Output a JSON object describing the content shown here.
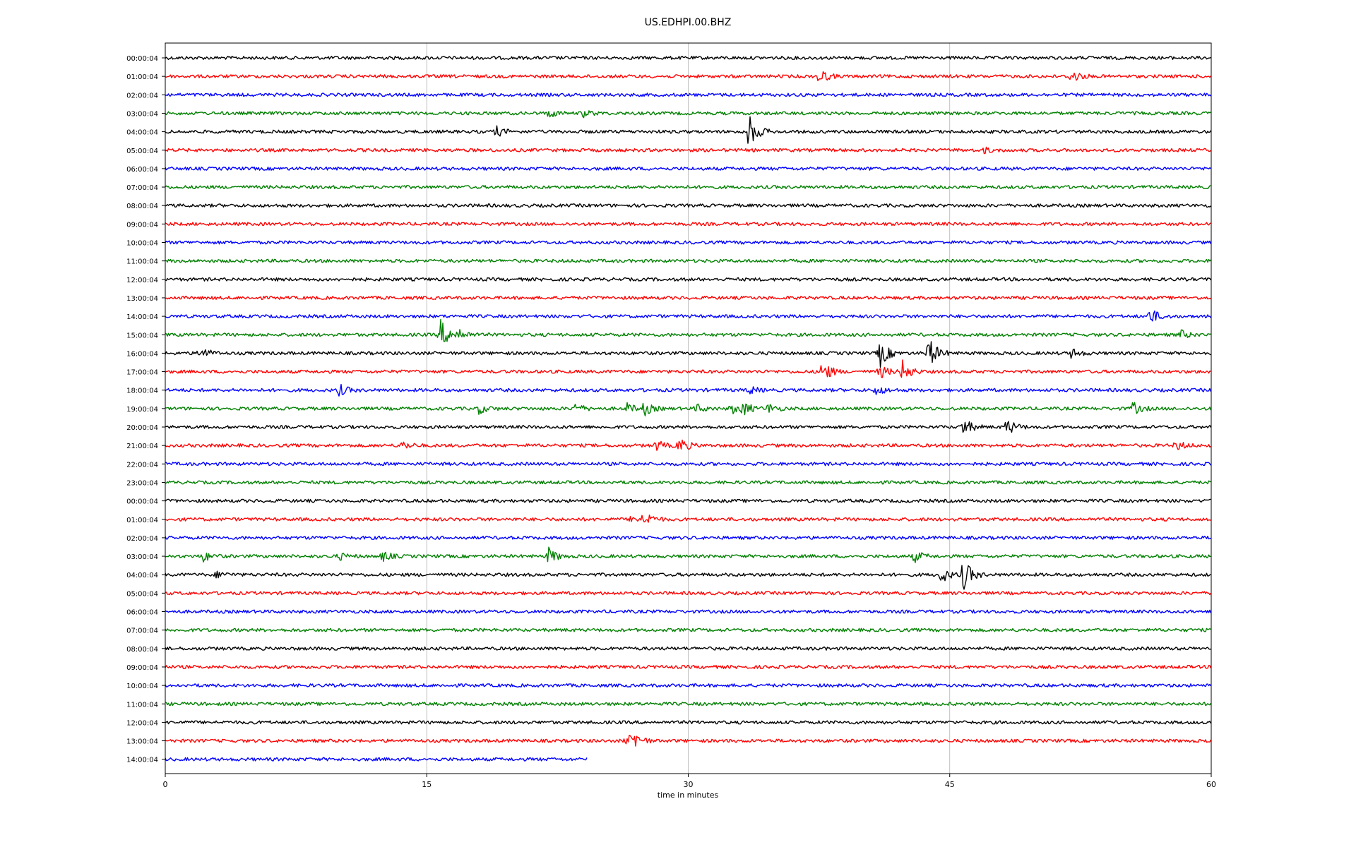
{
  "chart_data": {
    "type": "line",
    "title": "US.EDHPI.00.BHZ",
    "xlabel": "time in minutes",
    "ylabel": "",
    "xlim": [
      0,
      60
    ],
    "xticks": [
      0,
      15,
      30,
      45,
      60
    ],
    "grid": "vertical lines at x ticks",
    "colors": [
      "#000000",
      "#ff0000",
      "#0000ff",
      "#008000"
    ],
    "row_labels": [
      "00:00:04",
      "01:00:04",
      "02:00:04",
      "03:00:04",
      "04:00:04",
      "05:00:04",
      "06:00:04",
      "07:00:04",
      "08:00:04",
      "09:00:04",
      "10:00:04",
      "11:00:04",
      "12:00:04",
      "13:00:04",
      "14:00:04",
      "15:00:04",
      "16:00:04",
      "17:00:04",
      "18:00:04",
      "19:00:04",
      "20:00:04",
      "21:00:04",
      "22:00:04",
      "23:00:04",
      "00:00:04",
      "01:00:04",
      "02:00:04",
      "03:00:04",
      "04:00:04",
      "05:00:04",
      "06:00:04",
      "07:00:04",
      "08:00:04",
      "09:00:04",
      "10:00:04",
      "11:00:04",
      "12:00:04",
      "13:00:04",
      "14:00:04"
    ],
    "last_row_end_minute": 24.2,
    "events": [
      {
        "row": 1,
        "minute": 37.5,
        "amp": 1.0
      },
      {
        "row": 1,
        "minute": 52.0,
        "amp": 0.8
      },
      {
        "row": 3,
        "minute": 22.0,
        "amp": 0.5
      },
      {
        "row": 3,
        "minute": 24.0,
        "amp": 0.4
      },
      {
        "row": 4,
        "minute": 19.0,
        "amp": 0.6
      },
      {
        "row": 4,
        "minute": 33.5,
        "amp": 2.2
      },
      {
        "row": 5,
        "minute": 47.0,
        "amp": 0.3
      },
      {
        "row": 14,
        "minute": 56.5,
        "amp": 1.0
      },
      {
        "row": 15,
        "minute": 15.8,
        "amp": 1.8
      },
      {
        "row": 15,
        "minute": 16.8,
        "amp": 0.8
      },
      {
        "row": 15,
        "minute": 58.2,
        "amp": 0.6
      },
      {
        "row": 16,
        "minute": 2.0,
        "amp": 0.9
      },
      {
        "row": 16,
        "minute": 41.0,
        "amp": 1.8
      },
      {
        "row": 16,
        "minute": 43.8,
        "amp": 2.0
      },
      {
        "row": 16,
        "minute": 52.0,
        "amp": 0.6
      },
      {
        "row": 17,
        "minute": 37.7,
        "amp": 1.5
      },
      {
        "row": 17,
        "minute": 41.0,
        "amp": 0.8
      },
      {
        "row": 17,
        "minute": 42.3,
        "amp": 1.4
      },
      {
        "row": 18,
        "minute": 10.0,
        "amp": 0.7
      },
      {
        "row": 18,
        "minute": 33.5,
        "amp": 0.5
      },
      {
        "row": 18,
        "minute": 40.8,
        "amp": 0.6
      },
      {
        "row": 19,
        "minute": 18.0,
        "amp": 0.6
      },
      {
        "row": 19,
        "minute": 23.5,
        "amp": 0.6
      },
      {
        "row": 19,
        "minute": 26.5,
        "amp": 0.6
      },
      {
        "row": 19,
        "minute": 27.5,
        "amp": 0.8
      },
      {
        "row": 19,
        "minute": 30.5,
        "amp": 0.5
      },
      {
        "row": 19,
        "minute": 32.5,
        "amp": 0.6
      },
      {
        "row": 19,
        "minute": 33.2,
        "amp": 0.8
      },
      {
        "row": 19,
        "minute": 34.6,
        "amp": 0.6
      },
      {
        "row": 19,
        "minute": 55.5,
        "amp": 0.8
      },
      {
        "row": 20,
        "minute": 45.8,
        "amp": 1.1
      },
      {
        "row": 20,
        "minute": 48.3,
        "amp": 1.0
      },
      {
        "row": 21,
        "minute": 13.6,
        "amp": 0.5
      },
      {
        "row": 21,
        "minute": 28.2,
        "amp": 0.6
      },
      {
        "row": 21,
        "minute": 29.5,
        "amp": 1.0
      },
      {
        "row": 21,
        "minute": 58.0,
        "amp": 0.6
      },
      {
        "row": 25,
        "minute": 27.5,
        "amp": 0.9
      },
      {
        "row": 25,
        "minute": 26.8,
        "amp": 0.5
      },
      {
        "row": 27,
        "minute": 2.2,
        "amp": 0.6
      },
      {
        "row": 27,
        "minute": 10.0,
        "amp": 0.4
      },
      {
        "row": 27,
        "minute": 12.5,
        "amp": 0.6
      },
      {
        "row": 27,
        "minute": 22.0,
        "amp": 1.0
      },
      {
        "row": 27,
        "minute": 43.0,
        "amp": 0.7
      },
      {
        "row": 28,
        "minute": 3.0,
        "amp": 0.4
      },
      {
        "row": 28,
        "minute": 44.5,
        "amp": 1.0
      },
      {
        "row": 28,
        "minute": 45.8,
        "amp": 2.0
      },
      {
        "row": 37,
        "minute": 26.5,
        "amp": 0.7
      },
      {
        "row": 37,
        "minute": 26.9,
        "amp": 0.9
      }
    ]
  }
}
